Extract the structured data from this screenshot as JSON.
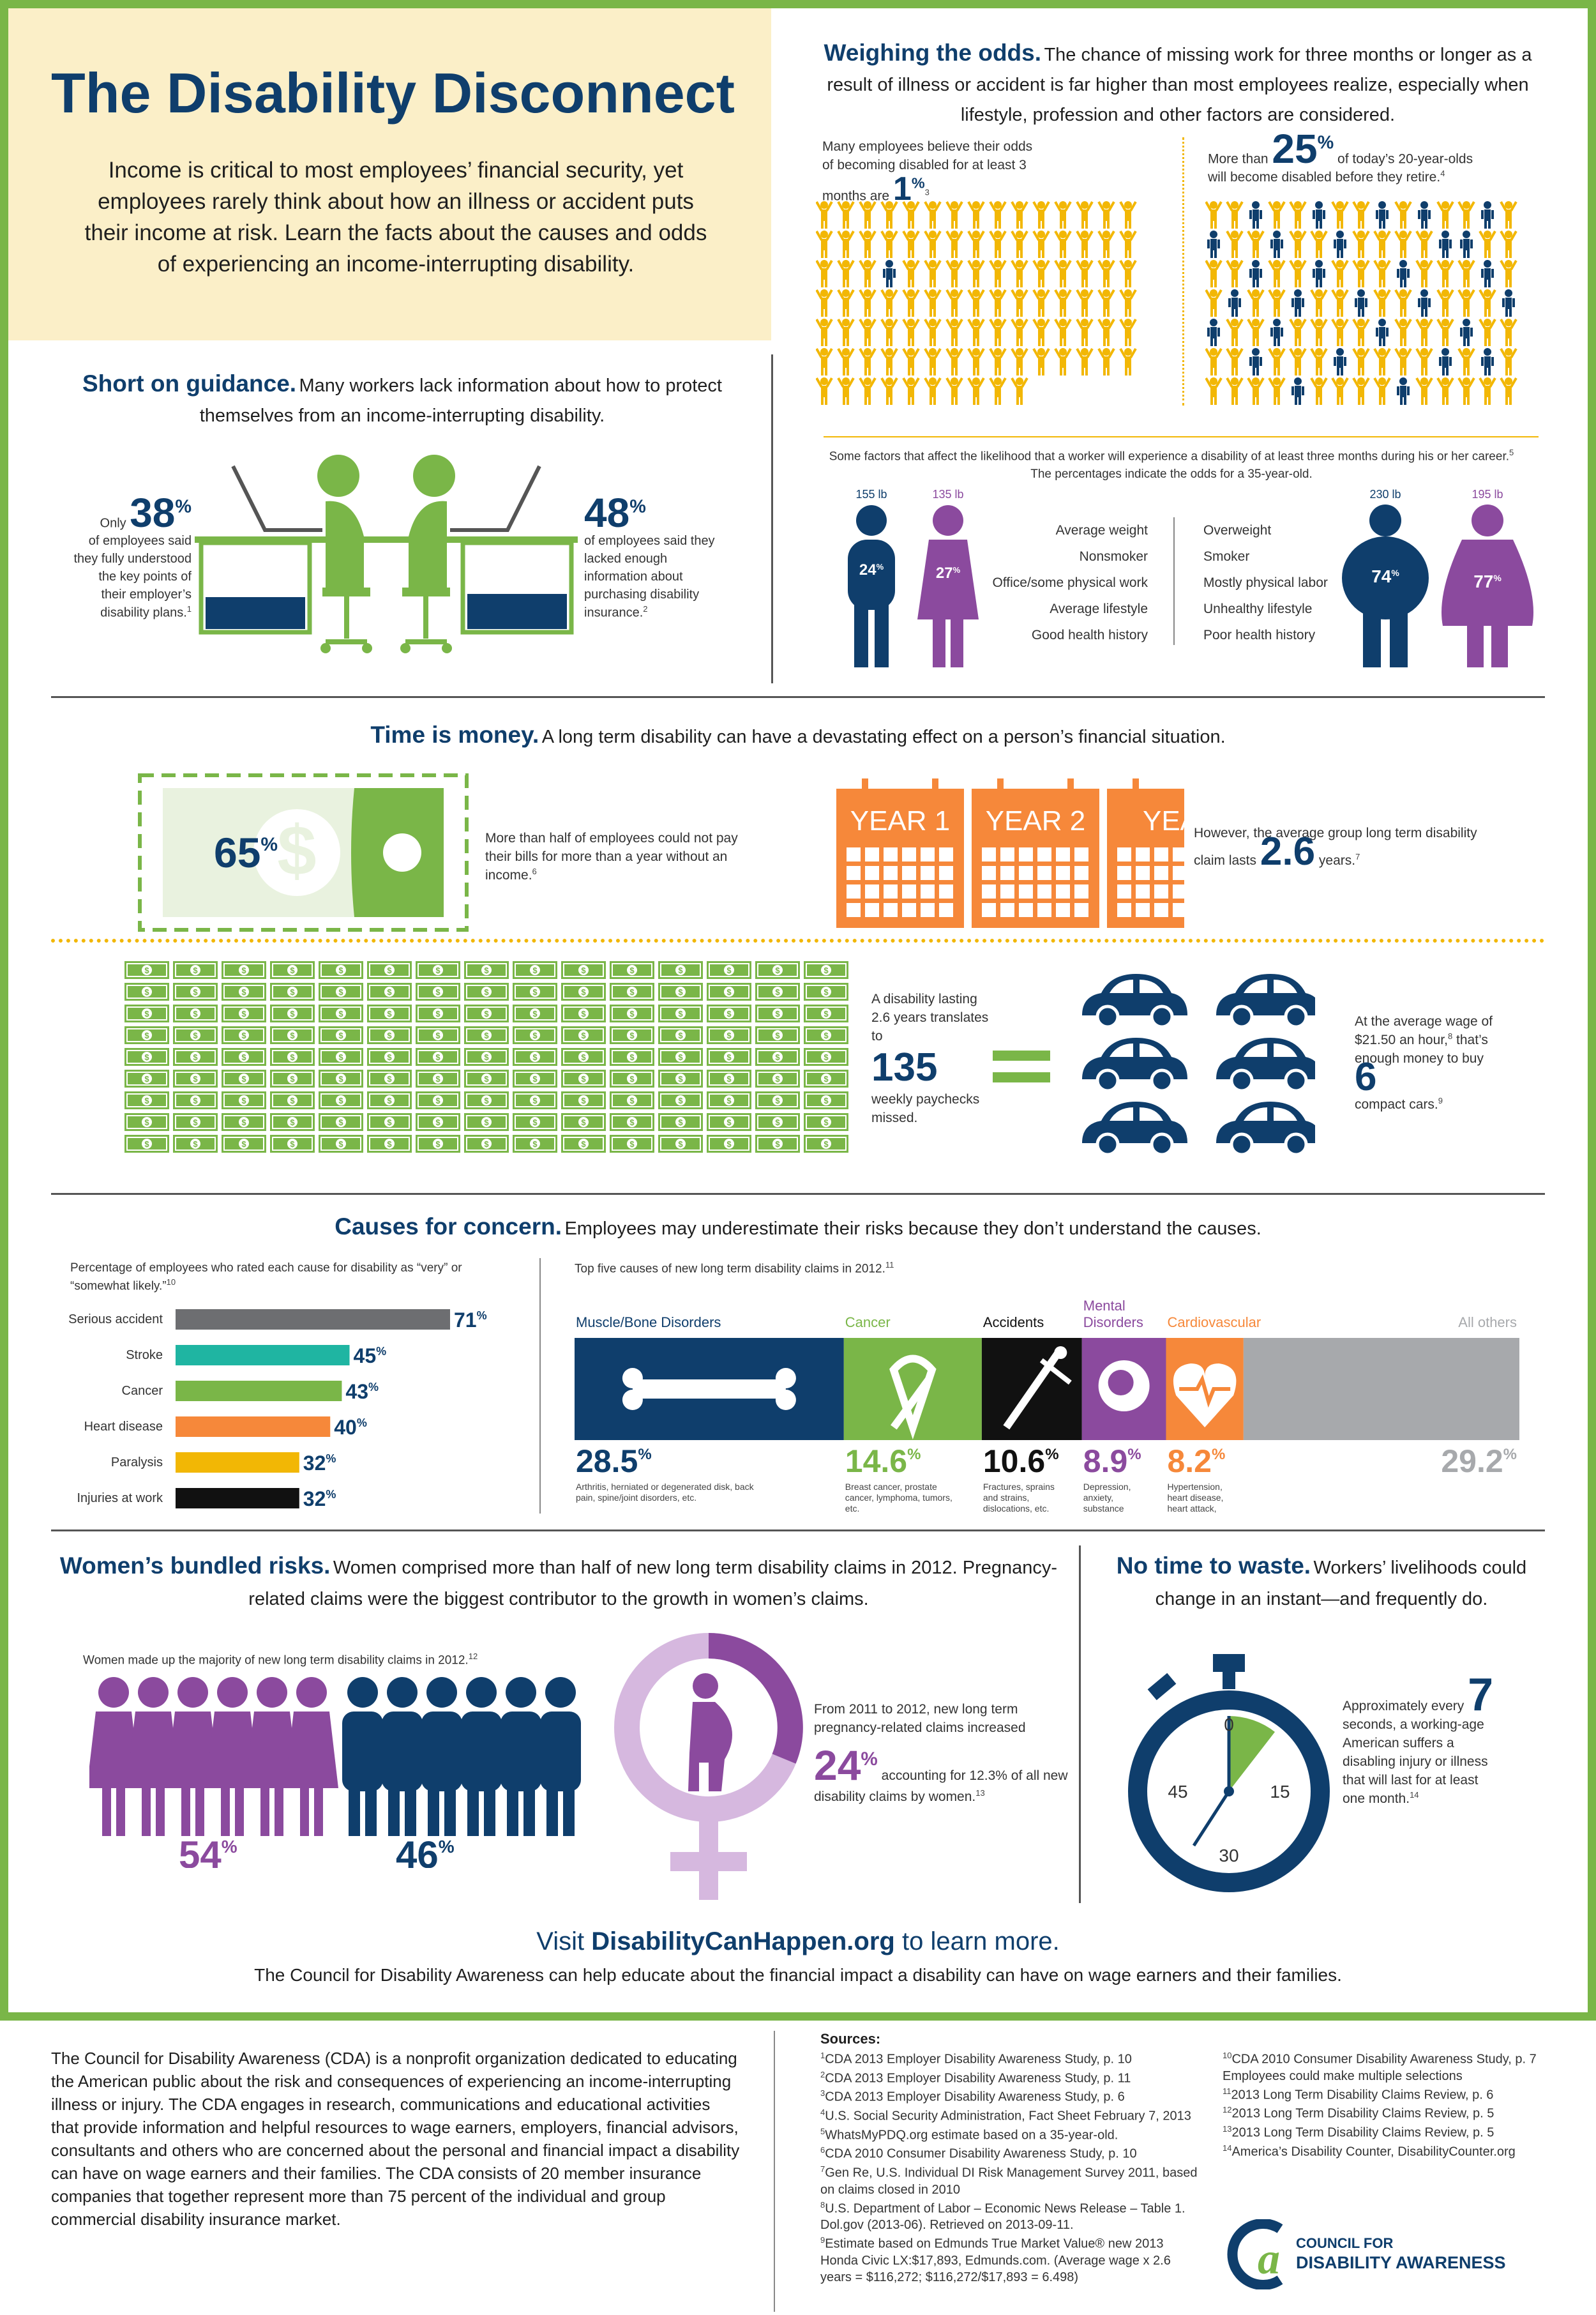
{
  "header": {
    "title": "The Disability Disconnect",
    "intro": "Income is critical to most employees’ financial security, yet employees rarely think about how an illness or accident puts their income at risk. Learn the facts about the causes and odds of experiencing an income-interrupting disability."
  },
  "odds": {
    "heading": "Weighing the odds.",
    "sub": "The chance of missing work for three months or longer as a result of illness or accident is far higher than most employees realize, especially when lifestyle, profession and other factors are considered.",
    "left_text": "Many employees believe their odds of becoming disabled for at least 3 months are",
    "left_num": "1",
    "left_ref": "3",
    "right_pre": "More than",
    "right_num": "25",
    "right_text": "of today’s 20-year-olds will become disabled before they retire.",
    "right_ref": "4",
    "factors_intro": "Some factors that affect the likelihood that a worker will experience a disability of at least three months during his or her career.",
    "factors_ref": "5",
    "factors_intro2": "The percentages indicate the odds for a 35-year-old.",
    "low_factors": [
      "Average weight",
      "Nonsmoker",
      "Office/some physical work",
      "Average lifestyle",
      "Good health history"
    ],
    "high_factors": [
      "Overweight",
      "Smoker",
      "Mostly physical labor",
      "Unhealthy lifestyle",
      "Poor health history"
    ],
    "man_low": {
      "weight": "155 lb",
      "pct": "24"
    },
    "woman_low": {
      "weight": "135 lb",
      "pct": "27"
    },
    "man_high": {
      "weight": "230 lb",
      "pct": "74"
    },
    "woman_high": {
      "weight": "195 lb",
      "pct": "77"
    }
  },
  "guidance": {
    "heading": "Short on guidance.",
    "sub": "Many workers lack information about how to protect themselves from an income-interrupting disability.",
    "left_pre": "Only",
    "left_num": "38",
    "left_text": "of employees said they fully understood the key points of their employer’s disability plans.",
    "left_ref": "1",
    "right_num": "48",
    "right_text": "of employees said they lacked enough information about purchasing disability insurance.",
    "right_ref": "2"
  },
  "money": {
    "heading": "Time is money.",
    "sub": "A long term disability can have a devastating effect on a person’s financial situation.",
    "pct": "65",
    "pct_text": "More than half of employees could not pay their bills for more than a year without an income.",
    "pct_ref": "6",
    "year1": "YEAR 1",
    "year2": "YEAR 2",
    "year3": "YEA",
    "claim_text": "However, the average group long term disability claim lasts",
    "claim_num": "2.6",
    "claim_unit": "years.",
    "claim_ref": "7",
    "pay_text1": "A disability lasting 2.6 years translates to",
    "pay_num": "135",
    "pay_text2": "weekly paychecks missed.",
    "car_text": "At the average wage of $21.50 an hour,",
    "car_ref1": "8",
    "car_text2": "that’s enough money to buy",
    "car_num": "6",
    "car_text3": "compact cars.",
    "car_ref2": "9"
  },
  "causes": {
    "heading": "Causes for concern.",
    "sub": "Employees may underestimate their risks because they don’t understand the causes.",
    "left_title": "Percentage of employees who rated each cause for disability as “very” or “somewhat likely.”",
    "left_ref": "10",
    "right_title": "Top five causes of new long term disability claims in 2012.",
    "right_ref": "11"
  },
  "chart_data": [
    {
      "type": "bar",
      "title": "Percentage of employees who rated each cause for disability as “very” or “somewhat likely.”",
      "categories": [
        "Serious accident",
        "Stroke",
        "Cancer",
        "Heart disease",
        "Paralysis",
        "Injuries at work"
      ],
      "values": [
        71,
        45,
        43,
        40,
        32,
        32
      ],
      "colors": [
        "#6d6e71",
        "#1fb5a2",
        "#7ab648",
        "#f6883a",
        "#f2b705",
        "#111111"
      ],
      "unit": "%"
    },
    {
      "type": "bar",
      "title": "Top five causes of new long term disability claims in 2012.",
      "categories": [
        "Muscle/Bone Disorders",
        "Cancer",
        "Accidents",
        "Mental Disorders",
        "Cardiovascular",
        "All others"
      ],
      "values": [
        28.5,
        14.6,
        10.6,
        8.9,
        8.2,
        29.2
      ],
      "colors": [
        "#0f3e6c",
        "#7ab648",
        "#111111",
        "#8b4a9e",
        "#f6883a",
        "#a7a9ac"
      ],
      "descriptions": [
        "Arthritis, herniated or degenerated disk, back pain, spine/joint disorders, etc.",
        "Breast cancer, prostate cancer, lymphoma, tumors, etc.",
        "Fractures, sprains and strains, dislocations, etc.",
        "Depression, anxiety, substance abuse, etc.",
        "Hypertension, heart disease, heart attack, stroke, etc.",
        ""
      ],
      "unit": "%"
    }
  ],
  "women": {
    "heading": "Women’s bundled risks.",
    "sub": "Women comprised more than half of new long term disability claims in 2012. Pregnancy-related claims were the biggest contributor to the growth in women’s claims.",
    "majority_text": "Women made up the majority of new long term disability claims in 2012.",
    "majority_ref": "12",
    "women_pct": "54",
    "men_pct": "46",
    "preg_text1": "From 2011 to 2012, new long term pregnancy-related claims increased",
    "preg_num": "24",
    "preg_text2": "accounting for 12.3% of all new disability claims by women.",
    "preg_ref": "13"
  },
  "time": {
    "heading": "No time to waste.",
    "sub": "Workers’ livelihoods could change in an instant—and frequently do.",
    "text1": "Approximately every",
    "num": "7",
    "text2": "seconds, a working-age American suffers a disabling injury or illness that will last for at least one month.",
    "ref": "14",
    "dial": [
      "0",
      "15",
      "30",
      "45"
    ]
  },
  "cta": {
    "visit": "Visit",
    "site": "DisabilityCanHappen.org",
    "tail": "to learn more.",
    "line2": "The Council for Disability Awareness can help educate about the financial impact a disability can have on wage earners and their families."
  },
  "about": "The Council for Disability Awareness (CDA) is a nonprofit organization dedicated to educating the American public about the risk and consequences of experiencing an income-interrupting illness or injury. The CDA engages in research, communications and educational activities that provide information and helpful resources to wage earners, employers, financial advisors, consultants and others who are concerned about the personal and financial impact a disability can have on wage earners and their families. The CDA consists of 20 member insurance companies that together represent more than 75 percent of the individual and group commercial disability insurance market.",
  "sources": {
    "heading": "Sources:",
    "left": [
      {
        "n": "1",
        "t": "CDA 2013 Employer Disability Awareness Study, p. 10"
      },
      {
        "n": "2",
        "t": "CDA 2013 Employer Disability Awareness Study, p. 11"
      },
      {
        "n": "3",
        "t": "CDA 2013 Employer Disability Awareness Study, p. 6"
      },
      {
        "n": "4",
        "t": "U.S. Social Security Administration, Fact Sheet February 7, 2013"
      },
      {
        "n": "5",
        "t": "WhatsMyPDQ.org estimate based on a 35-year-old."
      },
      {
        "n": "6",
        "t": "CDA 2010 Consumer Disability Awareness Study, p. 10"
      },
      {
        "n": "7",
        "t": "Gen Re, U.S. Individual DI Risk Management Survey 2011, based on claims closed in 2010"
      },
      {
        "n": "8",
        "t": "U.S. Department of Labor – Economic News Release – Table 1. Dol.gov (2013-06). Retrieved on 2013-09-11."
      },
      {
        "n": "9",
        "t": "Estimate based on Edmunds True Market Value® new 2013 Honda Civic LX:$17,893, Edmunds.com. (Average wage x 2.6 years = $116,272; $116,272/$17,893 = 6.498)"
      }
    ],
    "right": [
      {
        "n": "10",
        "t": "CDA 2010 Consumer Disability Awareness Study, p. 7 Employees could make multiple selections"
      },
      {
        "n": "11",
        "t": "2013 Long Term Disability Claims Review, p. 6"
      },
      {
        "n": "12",
        "t": "2013 Long Term Disability Claims Review, p. 5"
      },
      {
        "n": "13",
        "t": "2013 Long Term Disability Claims Review, p. 5"
      },
      {
        "n": "14",
        "t": "America’s Disability Counter, DisabilityCounter.org"
      }
    ]
  },
  "logo": {
    "line1": "COUNCIL FOR",
    "line2": "DISABILITY AWARENESS"
  },
  "colors": {
    "navy": "#0f3e6c",
    "green": "#7ab648",
    "purple": "#8b4a9e",
    "orange": "#f6883a",
    "yellow": "#f2b705",
    "intro_bg": "#fbefc8"
  }
}
